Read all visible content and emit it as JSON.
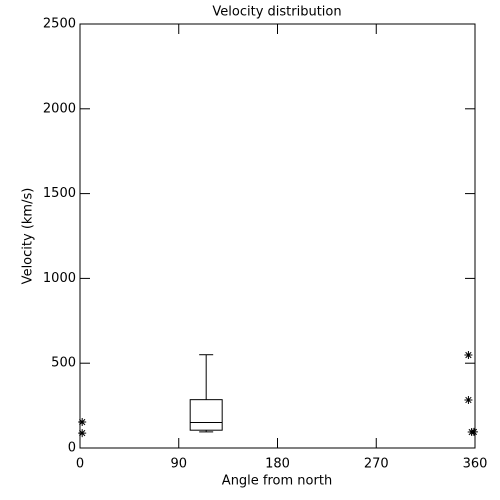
{
  "chart_data": {
    "type": "box",
    "title": "Velocity distribution",
    "xlabel": "Angle from north",
    "ylabel": "Velocity (km/s)",
    "boxes": [
      {
        "x": 115,
        "whislo": 95,
        "q1": 105,
        "med": 150,
        "q3": 285,
        "whishi": 550
      }
    ],
    "points": {
      "x": [
        2,
        2,
        354,
        354,
        357,
        359
      ],
      "y": [
        88,
        153,
        548,
        283,
        94,
        95
      ]
    },
    "color": "#000000",
    "xlim": [
      0,
      360
    ],
    "xticks": [
      0,
      90,
      180,
      270,
      360
    ],
    "ylim": [
      0,
      2500
    ],
    "yticks": [
      0,
      500,
      1000,
      1500,
      2000,
      2500
    ]
  }
}
